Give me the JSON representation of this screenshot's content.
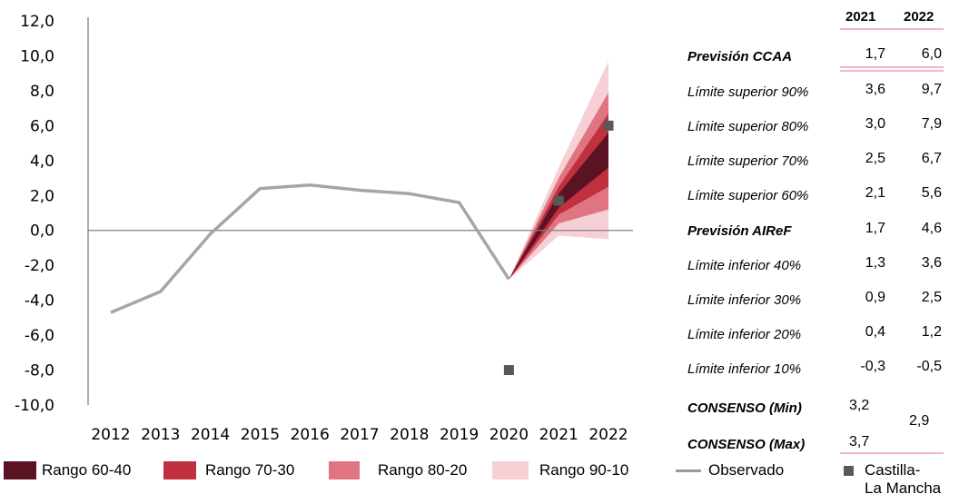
{
  "chart_data": {
    "type": "area",
    "y_ticks": [
      "12,0",
      "10,0",
      "8,0",
      "6,0",
      "4,0",
      "2,0",
      "0,0",
      "-2,0",
      "-4,0",
      "-6,0",
      "-8,0",
      "-10,0"
    ],
    "ylim": [
      -10,
      12
    ],
    "categories": [
      "2012",
      "2013",
      "2014",
      "2015",
      "2016",
      "2017",
      "2018",
      "2019",
      "2020",
      "2021",
      "2022"
    ],
    "observed": [
      -4.7,
      -3.5,
      -0.2,
      2.4,
      2.6,
      2.3,
      2.1,
      1.6,
      -2.8
    ],
    "fan_start": {
      "year": "2020",
      "value": -2.8
    },
    "fan_bounds": {
      "2021": {
        "p10": -0.3,
        "p20": 0.4,
        "p30": 0.9,
        "p40": 1.3,
        "p60": 2.1,
        "p70": 2.5,
        "p80": 3.0,
        "p90": 3.6
      },
      "2022": {
        "p10": -0.5,
        "p20": 1.2,
        "p30": 2.5,
        "p40": 3.6,
        "p60": 5.6,
        "p70": 6.7,
        "p80": 7.9,
        "p90": 9.7
      }
    },
    "castilla_points": [
      {
        "year": "2020",
        "value": -8.0
      },
      {
        "year": "2021",
        "value": 1.7
      },
      {
        "year": "2022",
        "value": 6.0
      }
    ],
    "colors": {
      "range_60_40": "#5b1324",
      "range_70_30": "#c0303f",
      "range_80_20": "#e07480",
      "range_90_10": "#f7d0d5",
      "observed": "#a6a6a6",
      "castilla": "#595959"
    }
  },
  "table": {
    "headers": [
      "2021",
      "2022"
    ],
    "rows": [
      {
        "label": "Previsión CCAA",
        "bold": true,
        "v2021": "1,7",
        "v2022": "6,0"
      },
      {
        "label": "Límite superior 90%",
        "bold": false,
        "v2021": "3,6",
        "v2022": "9,7"
      },
      {
        "label": "Límite superior 80%",
        "bold": false,
        "v2021": "3,0",
        "v2022": "7,9"
      },
      {
        "label": "Límite superior 70%",
        "bold": false,
        "v2021": "2,5",
        "v2022": "6,7"
      },
      {
        "label": "Límite superior 60%",
        "bold": false,
        "v2021": "2,1",
        "v2022": "5,6"
      },
      {
        "label": "Previsión AIReF",
        "bold": true,
        "v2021": "1,7",
        "v2022": "4,6"
      },
      {
        "label": "Límite inferior 40%",
        "bold": false,
        "v2021": "1,3",
        "v2022": "3,6"
      },
      {
        "label": "Límite inferior 30%",
        "bold": false,
        "v2021": "0,9",
        "v2022": "2,5"
      },
      {
        "label": "Límite inferior 20%",
        "bold": false,
        "v2021": "0,4",
        "v2022": "1,2"
      },
      {
        "label": "Límite inferior 10%",
        "bold": false,
        "v2021": "-0,3",
        "v2022": "-0,5"
      }
    ],
    "consenso_min_label": "CONSENSO (Min)",
    "consenso_max_label": "CONSENSO (Max)",
    "consenso_min_2021": "3,2",
    "consenso_max_2021": "3,7",
    "consenso_2022": "2,9"
  },
  "legend": {
    "r6040": "Rango 60-40",
    "r7030": "Rango 70-30",
    "r8020": "Rango 80-20",
    "r9010": "Rango 90-10",
    "observed": "Observado",
    "castilla_line1": "Castilla-",
    "castilla_line2": "La Mancha"
  }
}
